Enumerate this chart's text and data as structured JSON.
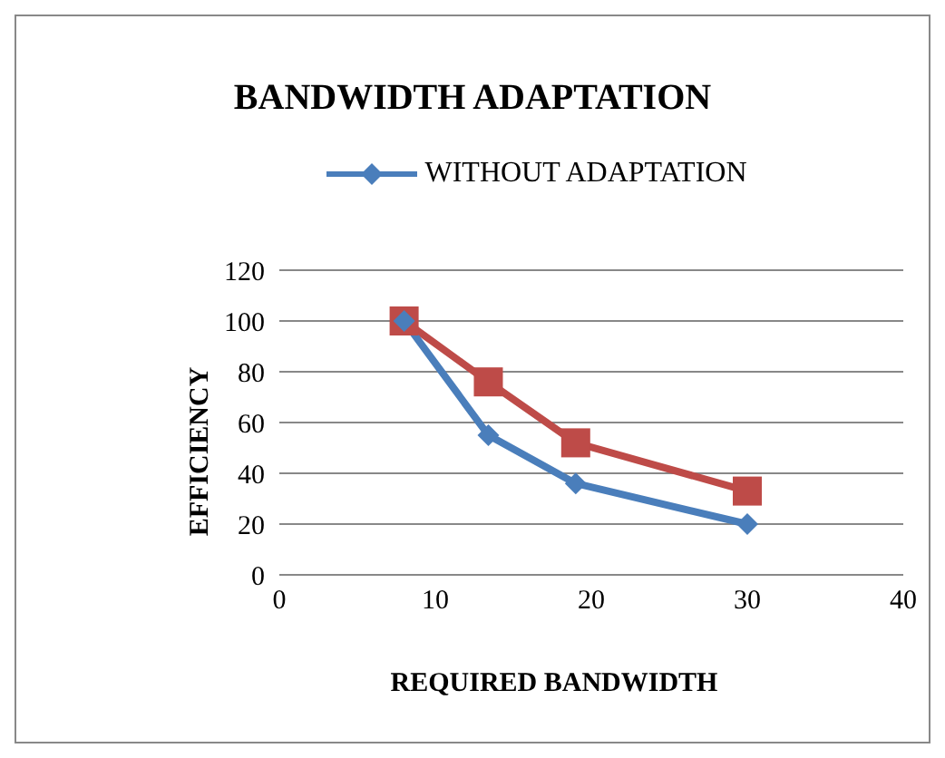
{
  "chart_data": {
    "type": "line",
    "title": "BANDWIDTH ADAPTATION",
    "xlabel": "REQUIRED BANDWIDTH",
    "ylabel": "EFFICIENCY",
    "xlim": [
      0,
      40
    ],
    "xticks": [
      0,
      10,
      20,
      30,
      40
    ],
    "ylim": [
      0,
      120
    ],
    "yticks": [
      0,
      20,
      40,
      60,
      80,
      100,
      120
    ],
    "grid": "y",
    "legend": "top",
    "line_style": "solid",
    "series": [
      {
        "name": "WITHOUT ADAPTATION",
        "color": "#4a7ebb",
        "marker": "diamond",
        "x": [
          8,
          13.4,
          19,
          30
        ],
        "values": [
          100,
          55,
          36,
          20
        ]
      },
      {
        "color": "#be4b48",
        "marker": "square",
        "x": [
          8,
          13.4,
          19,
          30
        ],
        "values": [
          100,
          76,
          52,
          33
        ]
      }
    ]
  }
}
